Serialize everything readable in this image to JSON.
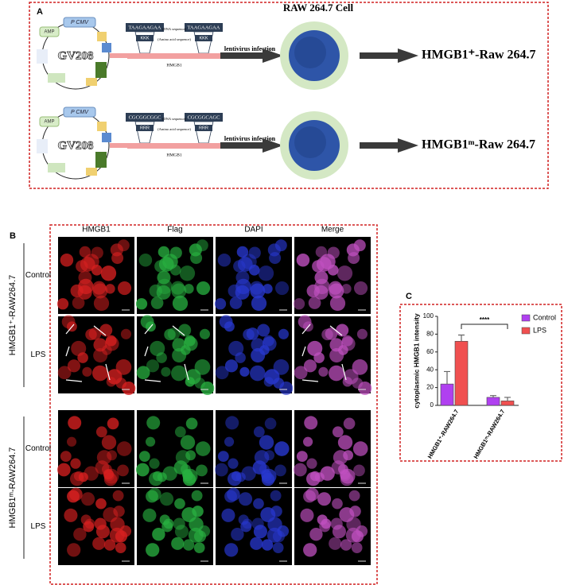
{
  "panel_a": {
    "label": "A",
    "cell_title": "RAW 264.7 Cell",
    "rows": [
      {
        "plasmid": "GV208",
        "promoter": "P CMV",
        "resistance": "AMP",
        "seq_left": "TAAGAAGAA",
        "seq_right": "TAAGAAGAA",
        "dna_label": "(DNA sequence)",
        "aa_label": "(Amino acid sequence)",
        "aa_left": "KKK",
        "aa_right": "KKK",
        "gene": "HMGB1",
        "arrow_label": "lentivirus infection",
        "result": "HMGB1⁺-Raw 264.7"
      },
      {
        "plasmid": "GV208",
        "promoter": "P CMV",
        "resistance": "AMP",
        "seq_left": "CGCGGCGGC",
        "seq_right": "CGCGGCAGC",
        "dna_label": "(DNA sequence)",
        "aa_label": "(Amino acid sequence)",
        "aa_left": "RRR",
        "aa_right": "RRR",
        "gene": "HMGB1",
        "arrow_label": "lentivirus infection",
        "result": "HMGB1ᵐ-Raw 264.7"
      }
    ]
  },
  "panel_b": {
    "label": "B",
    "columns": [
      "HMGB1",
      "Flag",
      "DAPI",
      "Merge"
    ],
    "groups": [
      {
        "name": "HMGB1⁺-RAW264.7",
        "rows": [
          "Control",
          "LPS"
        ]
      },
      {
        "name": "HMGB1ᵐ-RAW264.7",
        "rows": [
          "Control",
          "LPS"
        ]
      }
    ]
  },
  "chart_data": {
    "type": "bar",
    "label": "C",
    "y_label": "cytoplasmic HMGB1 intensity",
    "categories": [
      "HMGB1⁺-RAW264.7",
      "HMGB1ᵐ-RAW264.7"
    ],
    "series": [
      {
        "name": "Control",
        "color": "#b040f0",
        "values": [
          24,
          9
        ],
        "errors": [
          14,
          2
        ]
      },
      {
        "name": "LPS",
        "color": "#f05050",
        "values": [
          72,
          5
        ],
        "errors": [
          7,
          4
        ]
      }
    ],
    "ylim": [
      0,
      100
    ],
    "yticks": [
      0,
      20,
      40,
      60,
      80,
      100
    ],
    "annotation": "****",
    "legend": "upper right"
  }
}
